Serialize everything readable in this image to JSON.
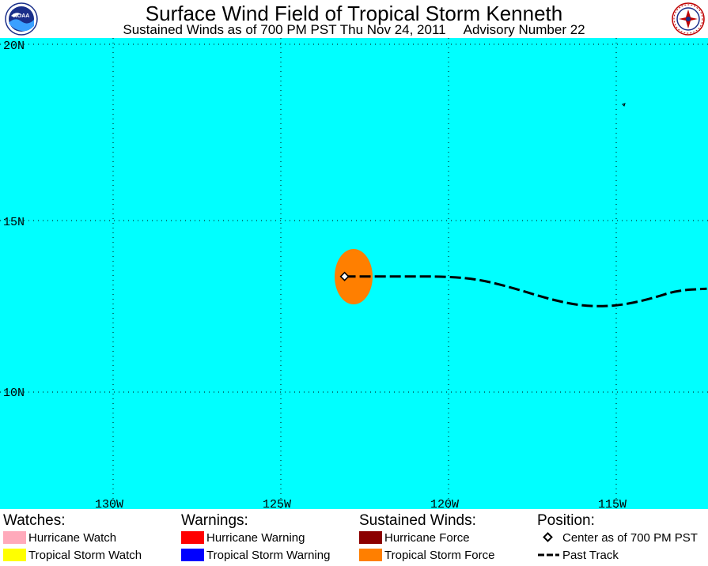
{
  "header": {
    "title": "Surface Wind Field of Tropical Storm Kenneth",
    "subtitle_time": "Sustained Winds as of 700 PM PST Thu Nov 24, 2011",
    "subtitle_advisory": "Advisory Number 22",
    "left_logo": {
      "icon": "noaa-logo-icon",
      "text": "NOAA"
    },
    "right_logo": {
      "icon": "nws-logo-icon"
    }
  },
  "map": {
    "ocean_color": "#00ffff",
    "lat_labels": [
      "20N",
      "15N",
      "10N"
    ],
    "lon_labels": [
      "130W",
      "125W",
      "120W",
      "115W"
    ],
    "storm": {
      "name": "Kenneth",
      "center_lat": 13.4,
      "center_lon": 123.1,
      "wind_field_color": "#ff7f00",
      "past_track": [
        [
          123.1,
          13.4
        ],
        [
          121.5,
          13.4
        ],
        [
          120.0,
          13.4
        ],
        [
          119.0,
          13.3
        ],
        [
          118.0,
          13.05
        ],
        [
          117.0,
          12.75
        ],
        [
          116.0,
          12.55
        ],
        [
          115.0,
          12.55
        ],
        [
          114.0,
          12.75
        ],
        [
          113.2,
          13.0
        ],
        [
          112.3,
          13.05
        ]
      ]
    }
  },
  "legend": {
    "watches": {
      "title": "Watches:",
      "items": [
        {
          "label": "Hurricane Watch",
          "color": "#ffaabb"
        },
        {
          "label": "Tropical Storm Watch",
          "color": "#ffff00"
        }
      ]
    },
    "warnings": {
      "title": "Warnings:",
      "items": [
        {
          "label": "Hurricane Warning",
          "color": "#ff0000"
        },
        {
          "label": "Tropical Storm Warning",
          "color": "#0000ff"
        }
      ]
    },
    "winds": {
      "title": "Sustained Winds:",
      "items": [
        {
          "label": "Hurricane Force",
          "color": "#8b0000"
        },
        {
          "label": "Tropical Storm Force",
          "color": "#ff7f00"
        }
      ]
    },
    "position": {
      "title": "Position:",
      "center_label": "Center as of 700 PM PST",
      "track_label": "Past Track"
    }
  }
}
